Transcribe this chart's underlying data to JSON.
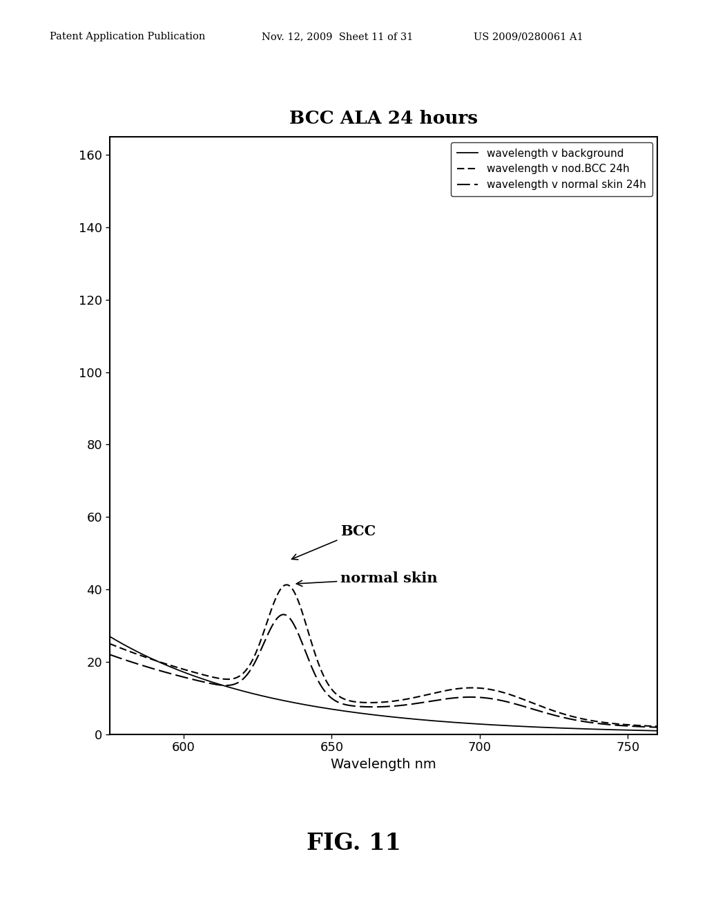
{
  "title": "BCC ALA 24 hours",
  "xlabel": "Wavelength nm",
  "header_left": "Patent Application Publication",
  "header_center": "Nov. 12, 2009  Sheet 11 of 31",
  "header_right": "US 2009/0280061 A1",
  "footer": "FIG. 11",
  "xlim": [
    575,
    760
  ],
  "ylim": [
    0,
    165
  ],
  "yticks": [
    0,
    20,
    40,
    60,
    80,
    100,
    120,
    140,
    160
  ],
  "xticks": [
    600,
    650,
    700,
    750
  ],
  "legend_entries": [
    "wavelength v background",
    "wavelength v nod.BCC 24h",
    "wavelength v normal skin 24h"
  ],
  "annotation_bcc": "BCC",
  "annotation_normal": "normal skin"
}
